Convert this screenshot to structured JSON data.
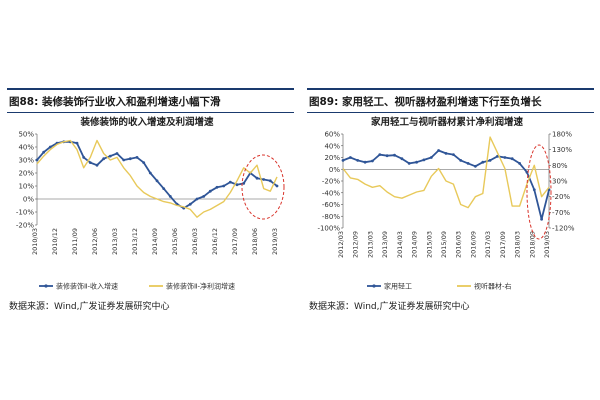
{
  "panels": [
    {
      "figure_label": "图88:",
      "figure_title": "装修装饰行业收入和盈利增速小幅下滑",
      "source": "数据来源：Wind,广发证券发展研究中心"
    },
    {
      "figure_label": "图89:",
      "figure_title": "家用轻工、视听器材盈利增速下行至负增长",
      "source": "数据来源：Wind,广发证券发展研究中心"
    }
  ],
  "colors": {
    "series_blue": "#2f5597",
    "series_yellow": "#e8c95a",
    "header_rule": "#1a3a6e",
    "highlight_circle": "#d9342b"
  },
  "chart_data": [
    {
      "type": "line",
      "title": "装修装饰的收入增速及利润增速",
      "x_ticks": [
        "2010/03",
        "2010/12",
        "2011/09",
        "2012/06",
        "2013/03",
        "2013/12",
        "2014/09",
        "2015/06",
        "2016/03",
        "2016/12",
        "2017/09",
        "2018/06",
        "2019/03"
      ],
      "y_ticks": [
        "50%",
        "40%",
        "30%",
        "20%",
        "10%",
        "0%",
        "-10%",
        "-20%"
      ],
      "ylim": [
        -20,
        50
      ],
      "x": [
        "2010/03",
        "2010/06",
        "2010/09",
        "2010/12",
        "2011/03",
        "2011/06",
        "2011/09",
        "2011/12",
        "2012/03",
        "2012/06",
        "2012/09",
        "2012/12",
        "2013/03",
        "2013/06",
        "2013/09",
        "2013/12",
        "2014/03",
        "2014/06",
        "2014/09",
        "2014/12",
        "2015/03",
        "2015/06",
        "2015/09",
        "2015/12",
        "2016/03",
        "2016/06",
        "2016/09",
        "2016/12",
        "2017/03",
        "2017/06",
        "2017/09",
        "2017/12",
        "2018/03",
        "2018/06",
        "2018/09",
        "2018/12",
        "2019/03"
      ],
      "series": [
        {
          "name": "装修装饰Ⅱ-收入增速",
          "axis": "left",
          "values": [
            30,
            36,
            40,
            43,
            44,
            44,
            43,
            32,
            28,
            26,
            31,
            33,
            35,
            30,
            31,
            32,
            28,
            20,
            14,
            8,
            2,
            -4,
            -7,
            -4,
            0,
            2,
            6,
            9,
            10,
            13,
            11,
            12,
            20,
            16,
            15,
            14,
            10
          ]
        },
        {
          "name": "装修装饰Ⅱ-净利润增速",
          "axis": "left",
          "values": [
            27,
            33,
            38,
            42,
            44,
            45,
            38,
            24,
            32,
            45,
            35,
            30,
            32,
            24,
            18,
            10,
            5,
            2,
            0,
            -2,
            -3,
            -5,
            -6,
            -8,
            -14,
            -10,
            -8,
            -5,
            -2,
            5,
            14,
            24,
            20,
            26,
            8,
            6,
            17
          ]
        }
      ]
    },
    {
      "type": "line",
      "title": "家用轻工与视听器材累计净利润增速",
      "x_ticks": [
        "2012/03",
        "2012/09",
        "2013/03",
        "2013/09",
        "2014/03",
        "2014/09",
        "2015/03",
        "2015/09",
        "2016/03",
        "2016/09",
        "2017/03",
        "2017/09",
        "2018/03",
        "2018/09",
        "2019/03"
      ],
      "y_ticks_left": [
        "60%",
        "40%",
        "20%",
        "0%",
        "-20%",
        "-40%",
        "-60%",
        "-80%",
        "-100%"
      ],
      "y_ticks_right": [
        "180%",
        "130%",
        "80%",
        "30%",
        "-20%",
        "-70%",
        "-120%"
      ],
      "ylim_left": [
        -100,
        60
      ],
      "ylim_right": [
        -120,
        180
      ],
      "x": [
        "2012/03",
        "2012/06",
        "2012/09",
        "2012/12",
        "2013/03",
        "2013/06",
        "2013/09",
        "2013/12",
        "2014/03",
        "2014/06",
        "2014/09",
        "2014/12",
        "2015/03",
        "2015/06",
        "2015/09",
        "2015/12",
        "2016/03",
        "2016/06",
        "2016/09",
        "2016/12",
        "2017/03",
        "2017/06",
        "2017/09",
        "2017/12",
        "2018/03",
        "2018/06",
        "2018/09",
        "2018/12",
        "2019/03"
      ],
      "series": [
        {
          "name": "家用轻工",
          "axis": "left",
          "values": [
            15,
            20,
            15,
            12,
            14,
            25,
            23,
            24,
            18,
            10,
            12,
            16,
            20,
            32,
            27,
            25,
            15,
            10,
            5,
            12,
            15,
            22,
            20,
            18,
            10,
            -5,
            -35,
            -85,
            -35
          ]
        },
        {
          "name": "视听器材-右",
          "axis": "right",
          "values": [
            70,
            40,
            35,
            20,
            10,
            15,
            -5,
            -20,
            -25,
            -15,
            -5,
            0,
            45,
            70,
            30,
            20,
            -45,
            -55,
            -20,
            -10,
            170,
            120,
            70,
            -50,
            -50,
            20,
            80,
            -20,
            10
          ]
        }
      ]
    }
  ]
}
